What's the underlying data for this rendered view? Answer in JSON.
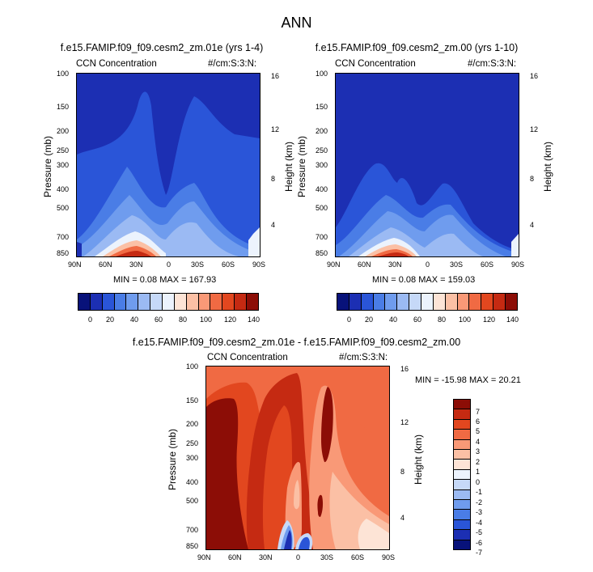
{
  "title": "ANN",
  "panels": [
    {
      "title": "f.e15.FAMIP.f09_f09.cesm2_zm.01e (yrs 1-4)",
      "left_label": "CCN Concentration",
      "right_label": "#/cm:S:3:N:",
      "min_label": "MIN =",
      "min_value": "0.08",
      "max_label": "MAX =",
      "max_value": "167.93"
    },
    {
      "title": "f.e15.FAMIP.f09_f09.cesm2_zm.00 (yrs 1-10)",
      "left_label": "CCN Concentration",
      "right_label": "#/cm:S:3:N:",
      "min_label": "MIN =",
      "min_value": "0.08",
      "max_label": "MAX =",
      "max_value": "159.03"
    },
    {
      "title": "f.e15.FAMIP.f09_f09.cesm2_zm.01e - f.e15.FAMIP.f09_f09.cesm2_zm.00",
      "left_label": "CCN Concentration",
      "right_label": "#/cm:S:3:N:",
      "min_label": "MIN =",
      "min_value": "-15.98",
      "max_label": "MAX =",
      "max_value": "20.21"
    }
  ],
  "colors": {
    "abs_scale": [
      "#08127a",
      "#1c2fb3",
      "#2a55d8",
      "#4a7de6",
      "#6f9cee",
      "#9bbaf3",
      "#c6d9f8",
      "#ecf3fd",
      "#fde4d6",
      "#fbc0a5",
      "#f99977",
      "#f06a43",
      "#e2471f",
      "#c52a12",
      "#8c0d06"
    ],
    "diff_scale": [
      "#08127a",
      "#1c2fb3",
      "#2a55d8",
      "#4a7de6",
      "#6f9cee",
      "#9bbaf3",
      "#c6d9f8",
      "#ecf3fd",
      "#fde4d6",
      "#fbc0a5",
      "#f99977",
      "#f06a43",
      "#e2471f",
      "#c52a12",
      "#8c0d06"
    ]
  },
  "chart_data": [
    {
      "type": "heatmap",
      "title": "f.e15.FAMIP.f09_f09.cesm2_zm.01e (yrs 1-4)",
      "xlabel": "",
      "ylabel": "Pressure (mb)",
      "y2label": "Height (km)",
      "x_ticks": [
        "90N",
        "60N",
        "30N",
        "0",
        "30S",
        "60S",
        "90S"
      ],
      "y_ticks": [
        "100",
        "150",
        "200",
        "250",
        "300",
        "400",
        "500",
        "700",
        "850"
      ],
      "y2_ticks": [
        "16",
        "12",
        "8",
        "4"
      ],
      "colorbar_ticks": [
        "0",
        "20",
        "40",
        "60",
        "80",
        "100",
        "120",
        "140"
      ],
      "min": 0.08,
      "max": 167.93,
      "field": "CCN Concentration",
      "units": "#/cm:S:3:N:"
    },
    {
      "type": "heatmap",
      "title": "f.e15.FAMIP.f09_f09.cesm2_zm.00 (yrs 1-10)",
      "xlabel": "",
      "ylabel": "Pressure (mb)",
      "y2label": "Height (km)",
      "x_ticks": [
        "90N",
        "60N",
        "30N",
        "0",
        "30S",
        "60S",
        "90S"
      ],
      "y_ticks": [
        "100",
        "150",
        "200",
        "250",
        "300",
        "400",
        "500",
        "700",
        "850"
      ],
      "y2_ticks": [
        "16",
        "12",
        "8",
        "4"
      ],
      "colorbar_ticks": [
        "0",
        "20",
        "40",
        "60",
        "80",
        "100",
        "120",
        "140"
      ],
      "min": 0.08,
      "max": 159.03,
      "field": "CCN Concentration",
      "units": "#/cm:S:3:N:"
    },
    {
      "type": "heatmap",
      "title": "f.e15.FAMIP.f09_f09.cesm2_zm.01e - f.e15.FAMIP.f09_f09.cesm2_zm.00",
      "xlabel": "",
      "ylabel": "Pressure (mb)",
      "y2label": "Height (km)",
      "x_ticks": [
        "90N",
        "60N",
        "30N",
        "0",
        "30S",
        "60S",
        "90S"
      ],
      "y_ticks": [
        "100",
        "150",
        "200",
        "250",
        "300",
        "400",
        "500",
        "700",
        "850"
      ],
      "y2_ticks": [
        "16",
        "12",
        "8",
        "4"
      ],
      "colorbar_ticks": [
        "7",
        "6",
        "5",
        "4",
        "3",
        "2",
        "1",
        "0",
        "-1",
        "-2",
        "-3",
        "-4",
        "-5",
        "-6",
        "-7"
      ],
      "min": -15.98,
      "max": 20.21,
      "field": "CCN Concentration",
      "units": "#/cm:S:3:N:"
    }
  ]
}
